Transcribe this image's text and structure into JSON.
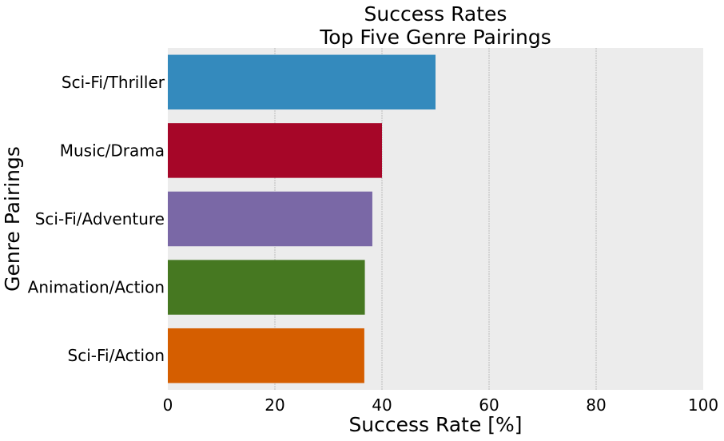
{
  "chart_data": {
    "type": "bar",
    "orientation": "horizontal",
    "title": "Success Rates",
    "subtitle": "Top Five Genre Pairings",
    "xlabel": "Success Rate [%]",
    "ylabel": "Genre Pairings",
    "xlim": [
      0,
      100
    ],
    "xticks": [
      "0",
      "20",
      "40",
      "60",
      "80",
      "100"
    ],
    "grid": true,
    "categories": [
      "Sci-Fi/Thriller",
      "Music/Drama",
      "Sci-Fi/Adventure",
      "Animation/Action",
      "Sci-Fi/Action"
    ],
    "values": [
      50.0,
      40.0,
      38.2,
      36.8,
      36.7
    ],
    "colors": [
      "#348abd",
      "#a60628",
      "#7a68a6",
      "#467821",
      "#d55e00"
    ],
    "background": "#ececec"
  }
}
